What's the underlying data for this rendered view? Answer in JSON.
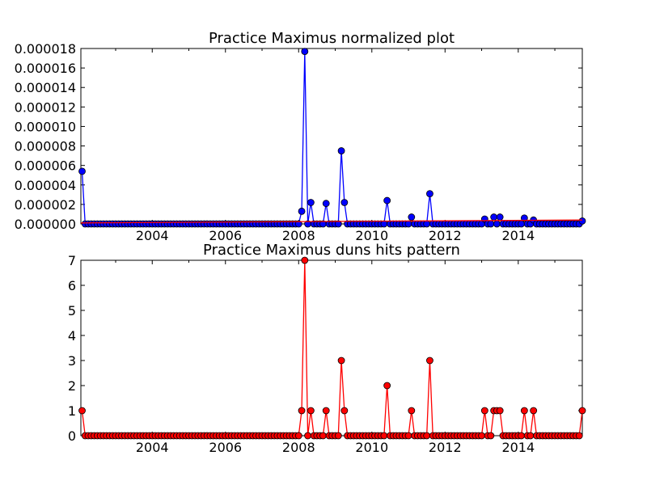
{
  "chart_data": [
    {
      "type": "line",
      "title": "Practice Maximus normalized plot",
      "xlabel": "",
      "ylabel": "",
      "xlim": [
        2002.05,
        2015.75
      ],
      "ylim": [
        0,
        1.8e-05
      ],
      "yticks": [
        "0.000000",
        "0.000002",
        "0.000004",
        "0.000006",
        "0.000008",
        "0.000010",
        "0.000012",
        "0.000014",
        "0.000016",
        "0.000018"
      ],
      "xticks": [
        "2004",
        "2006",
        "2008",
        "2010",
        "2012",
        "2014"
      ],
      "grid": false,
      "series": [
        {
          "color": "#0000ff",
          "marker": "circle",
          "x": [
            2002.05,
            2008.08,
            2008.17,
            2008.33,
            2008.75,
            2009.17,
            2009.25,
            2010.42,
            2011.08,
            2011.58,
            2013.08,
            2013.33,
            2013.5,
            2014.17,
            2014.42,
            2015.75
          ],
          "y": [
            5.4e-06,
            1.3e-06,
            1.77e-05,
            2.2e-06,
            2.1e-06,
            7.5e-06,
            2.2e-06,
            2.4e-06,
            7e-07,
            3.1e-06,
            5e-07,
            7e-07,
            7e-07,
            6e-07,
            4e-07,
            3e-07
          ]
        },
        {
          "color": "#ff0000",
          "marker": "none",
          "x": [
            2002.05,
            2015.75
          ],
          "y": [
            1e-07,
            4e-07
          ]
        }
      ]
    },
    {
      "type": "line",
      "title": "Practice Maximus duns hits pattern",
      "xlabel": "",
      "ylabel": "",
      "xlim": [
        2002.05,
        2015.75
      ],
      "ylim": [
        0,
        7
      ],
      "yticks": [
        "0",
        "1",
        "2",
        "3",
        "4",
        "5",
        "6",
        "7"
      ],
      "xticks": [
        "2004",
        "2006",
        "2008",
        "2010",
        "2012",
        "2014"
      ],
      "grid": false,
      "series": [
        {
          "color": "#ff0000",
          "marker": "circle",
          "x": [
            2002.05,
            2008.08,
            2008.17,
            2008.33,
            2008.75,
            2009.17,
            2009.25,
            2010.42,
            2011.08,
            2011.58,
            2013.08,
            2013.33,
            2013.42,
            2013.5,
            2014.17,
            2014.42,
            2015.75
          ],
          "y": [
            1,
            1,
            7,
            1,
            1,
            3,
            1,
            2,
            1,
            3,
            1,
            1,
            1,
            1,
            1,
            1,
            1
          ]
        }
      ]
    }
  ]
}
